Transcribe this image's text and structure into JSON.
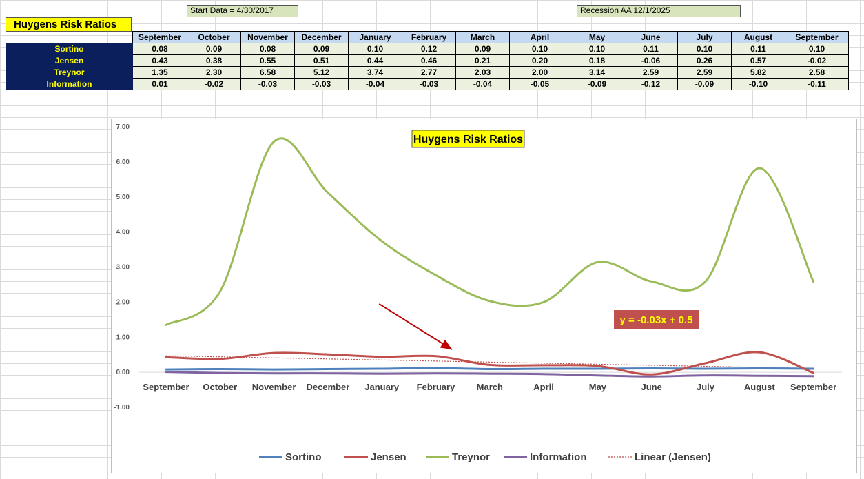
{
  "sheet": {
    "title": "Huygens Risk Ratios",
    "start_note": "Start Data = 4/30/2017",
    "recession_note": "Recession AA 12/1/2025"
  },
  "table": {
    "columns": [
      "September",
      "October",
      "November",
      "December",
      "January",
      "February",
      "March",
      "April",
      "May",
      "June",
      "July",
      "August",
      "September"
    ],
    "rows": [
      {
        "label": "Sortino",
        "values": [
          "0.08",
          "0.09",
          "0.08",
          "0.09",
          "0.10",
          "0.12",
          "0.09",
          "0.10",
          "0.10",
          "0.11",
          "0.10",
          "0.11",
          "0.10"
        ]
      },
      {
        "label": "Jensen",
        "values": [
          "0.43",
          "0.38",
          "0.55",
          "0.51",
          "0.44",
          "0.46",
          "0.21",
          "0.20",
          "0.18",
          "-0.06",
          "0.26",
          "0.57",
          "-0.02"
        ]
      },
      {
        "label": "Treynor",
        "values": [
          "1.35",
          "2.30",
          "6.58",
          "5.12",
          "3.74",
          "2.77",
          "2.03",
          "2.00",
          "3.14",
          "2.59",
          "2.59",
          "5.82",
          "2.58"
        ]
      },
      {
        "label": "Information",
        "values": [
          "0.01",
          "-0.02",
          "-0.03",
          "-0.03",
          "-0.04",
          "-0.03",
          "-0.04",
          "-0.05",
          "-0.09",
          "-0.12",
          "-0.09",
          "-0.10",
          "-0.11"
        ]
      }
    ]
  },
  "chart_data": {
    "type": "line",
    "title": "Huygens Risk Ratios",
    "categories": [
      "September",
      "October",
      "November",
      "December",
      "January",
      "February",
      "March",
      "April",
      "May",
      "June",
      "July",
      "August",
      "September"
    ],
    "ylim": [
      -1,
      7
    ],
    "yticks": [
      "7.00",
      "6.00",
      "5.00",
      "4.00",
      "3.00",
      "2.00",
      "1.00",
      "0.00",
      "-1.00"
    ],
    "grid": false,
    "legend_position": "bottom",
    "series": [
      {
        "name": "Sortino",
        "color": "#4f81bd",
        "values": [
          0.08,
          0.09,
          0.08,
          0.09,
          0.1,
          0.12,
          0.09,
          0.1,
          0.1,
          0.11,
          0.1,
          0.11,
          0.1
        ]
      },
      {
        "name": "Jensen",
        "color": "#c0504d",
        "values": [
          0.43,
          0.38,
          0.55,
          0.51,
          0.44,
          0.46,
          0.21,
          0.2,
          0.18,
          -0.06,
          0.26,
          0.57,
          -0.02
        ]
      },
      {
        "name": "Treynor",
        "color": "#9bbb59",
        "values": [
          1.35,
          2.3,
          6.58,
          5.12,
          3.74,
          2.77,
          2.03,
          2.0,
          3.14,
          2.59,
          2.59,
          5.82,
          2.58
        ]
      },
      {
        "name": "Information",
        "color": "#8064a2",
        "values": [
          0.01,
          -0.02,
          -0.03,
          -0.03,
          -0.04,
          -0.03,
          -0.04,
          -0.05,
          -0.09,
          -0.12,
          -0.09,
          -0.1,
          -0.11
        ]
      }
    ],
    "trendline": {
      "name": "Linear (Jensen)",
      "of": "Jensen",
      "color": "#c0504d",
      "equation": "y = -0.03x + 0.5",
      "slope": -0.03,
      "intercept": 0.5
    },
    "annotation": {
      "type": "arrow",
      "color": "#c00000",
      "from": {
        "category_index": 3.95,
        "y": 1.95
      },
      "to": {
        "category_index": 5.3,
        "y": 0.65
      }
    }
  }
}
